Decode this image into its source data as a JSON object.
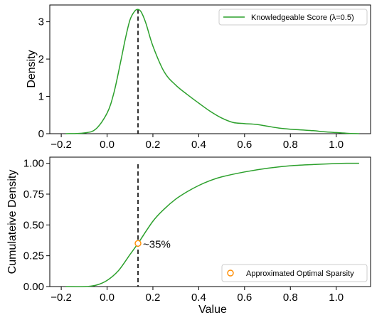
{
  "chart_data": [
    {
      "type": "line",
      "ylabel": "Density",
      "xlim": [
        -0.25,
        1.15
      ],
      "ylim": [
        0,
        3.45
      ],
      "xticks": [
        "−0.2",
        "0.0",
        "0.2",
        "0.4",
        "0.6",
        "0.8",
        "1.0"
      ],
      "xtick_values": [
        -0.2,
        0.0,
        0.2,
        0.4,
        0.6,
        0.8,
        1.0
      ],
      "yticks": [
        "0",
        "1",
        "2",
        "3"
      ],
      "ytick_values": [
        0,
        1,
        2,
        3
      ],
      "legend_position": "top-right",
      "series": [
        {
          "name": "Knowledgeable Score (λ=0.5)",
          "color": "#2ca02c",
          "x": [
            -0.18,
            -0.1,
            -0.05,
            0.0,
            0.03,
            0.06,
            0.08,
            0.1,
            0.12,
            0.135,
            0.15,
            0.17,
            0.2,
            0.25,
            0.3,
            0.35,
            0.4,
            0.45,
            0.5,
            0.55,
            0.6,
            0.65,
            0.7,
            0.75,
            0.8,
            0.85,
            0.9,
            0.95,
            1.0,
            1.05,
            1.1
          ],
          "y": [
            0.0,
            0.02,
            0.12,
            0.55,
            1.1,
            1.95,
            2.55,
            3.05,
            3.28,
            3.33,
            3.25,
            2.95,
            2.35,
            1.65,
            1.3,
            1.05,
            0.82,
            0.6,
            0.42,
            0.3,
            0.27,
            0.25,
            0.2,
            0.15,
            0.12,
            0.1,
            0.08,
            0.05,
            0.03,
            0.01,
            0.0
          ]
        }
      ],
      "marker_line": {
        "x": 0.135,
        "style": "dashed",
        "color": "#000000"
      }
    },
    {
      "type": "line",
      "xlabel": "Value",
      "ylabel": "Cumulateive Density",
      "xlim": [
        -0.25,
        1.15
      ],
      "ylim": [
        0,
        1.05
      ],
      "xticks": [
        "−0.2",
        "0.0",
        "0.2",
        "0.4",
        "0.6",
        "0.8",
        "1.0"
      ],
      "xtick_values": [
        -0.2,
        0.0,
        0.2,
        0.4,
        0.6,
        0.8,
        1.0
      ],
      "yticks": [
        "0.00",
        "0.25",
        "0.50",
        "0.75",
        "1.00"
      ],
      "ytick_values": [
        0.0,
        0.25,
        0.5,
        0.75,
        1.0
      ],
      "legend_position": "bottom-right",
      "series": [
        {
          "color": "#2ca02c",
          "x": [
            -0.18,
            -0.1,
            -0.05,
            0.0,
            0.05,
            0.1,
            0.135,
            0.2,
            0.25,
            0.3,
            0.35,
            0.4,
            0.45,
            0.5,
            0.6,
            0.7,
            0.8,
            0.9,
            1.0,
            1.05,
            1.1
          ],
          "y": [
            0.0,
            0.0,
            0.01,
            0.05,
            0.13,
            0.26,
            0.35,
            0.53,
            0.63,
            0.71,
            0.77,
            0.82,
            0.86,
            0.89,
            0.93,
            0.96,
            0.98,
            0.99,
            0.998,
            1.0,
            1.0
          ]
        }
      ],
      "marker_line": {
        "x": 0.135,
        "style": "dashed",
        "color": "#000000"
      },
      "point": {
        "name": "Approximated Optimal Sparsity",
        "x": 0.135,
        "y": 0.35,
        "color": "#ff8c00",
        "label": "~35%"
      }
    }
  ]
}
